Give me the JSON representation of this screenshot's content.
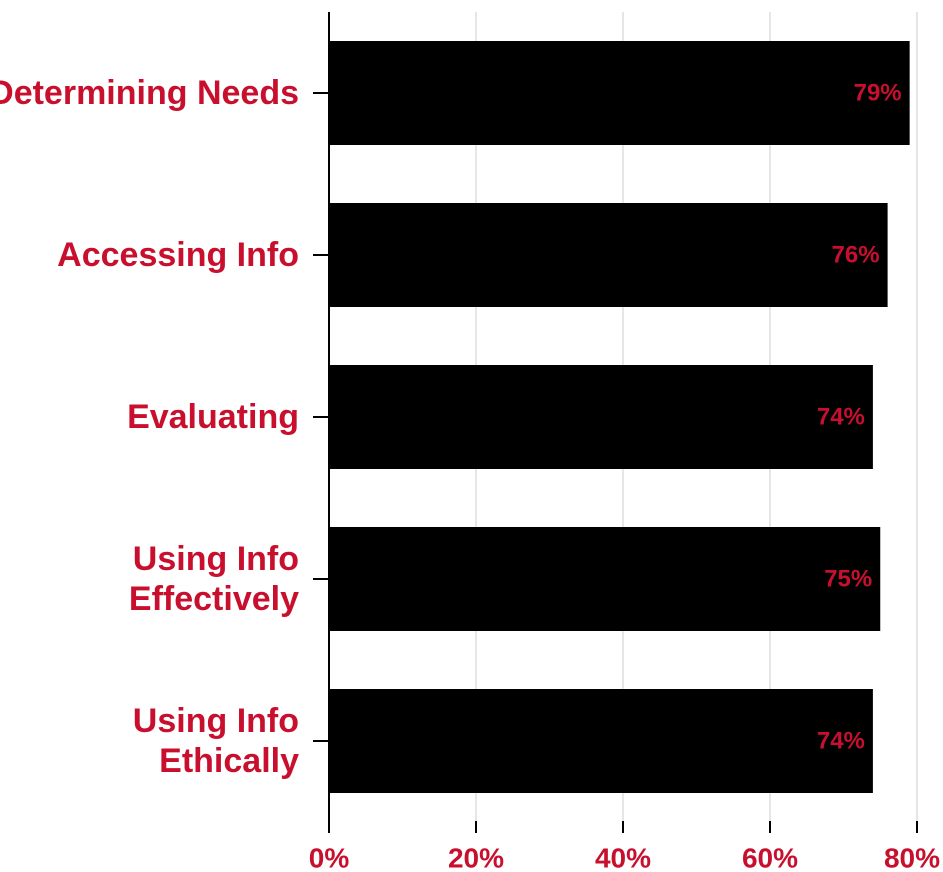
{
  "chart_data": {
    "type": "bar",
    "orientation": "horizontal",
    "categories": [
      [
        "Determining Needs"
      ],
      [
        "Accessing Info"
      ],
      [
        "Evaluating"
      ],
      [
        "Using Info",
        "Effectively"
      ],
      [
        "Using Info",
        "Ethically"
      ]
    ],
    "values": [
      79,
      76,
      74,
      75,
      74
    ],
    "data_labels": [
      "79%",
      "76%",
      "74%",
      "75%",
      "74%"
    ],
    "xticks": [
      0,
      20,
      40,
      60,
      80
    ],
    "xtick_labels": [
      "0%",
      "20%",
      "40%",
      "60%",
      "80%"
    ],
    "xlim": [
      0,
      80
    ],
    "title": "",
    "xlabel": "",
    "ylabel": "",
    "grid": "vertical",
    "legend": "none",
    "colors": {
      "bar": "#000000",
      "label": "#c8102e",
      "grid": "#dddddd",
      "axis": "#000000"
    }
  }
}
